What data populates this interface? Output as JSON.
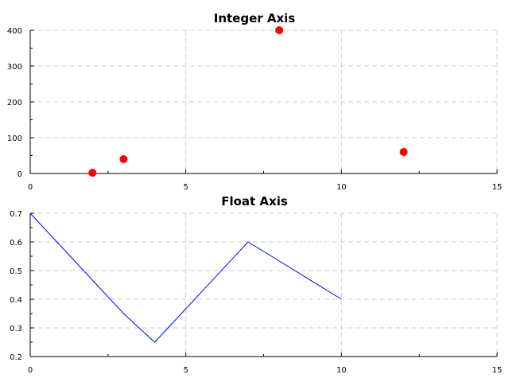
{
  "chart_data": [
    {
      "type": "scatter",
      "title": "Integer Axis",
      "xlabel": "",
      "ylabel": "",
      "xlim": [
        0,
        15
      ],
      "ylim": [
        0,
        400
      ],
      "xticks": [
        0,
        5,
        10,
        15
      ],
      "yticks": [
        0,
        100,
        200,
        300,
        400
      ],
      "grid": true,
      "series": [
        {
          "x": [
            2,
            3,
            8,
            12
          ],
          "y": [
            2,
            40,
            400,
            60
          ],
          "color": "#ff0000"
        }
      ]
    },
    {
      "type": "line",
      "title": "Float Axis",
      "xlabel": "",
      "ylabel": "",
      "xlim": [
        0,
        15
      ],
      "ylim": [
        0.2,
        0.7
      ],
      "xticks": [
        0,
        5,
        10,
        15
      ],
      "yticks": [
        0.2,
        0.3,
        0.4,
        0.5,
        0.6,
        0.7
      ],
      "grid": true,
      "series": [
        {
          "x": [
            0,
            3,
            4,
            7,
            10
          ],
          "y": [
            0.7,
            0.35,
            0.25,
            0.6,
            0.4
          ],
          "color": "#0000ff"
        }
      ]
    }
  ]
}
